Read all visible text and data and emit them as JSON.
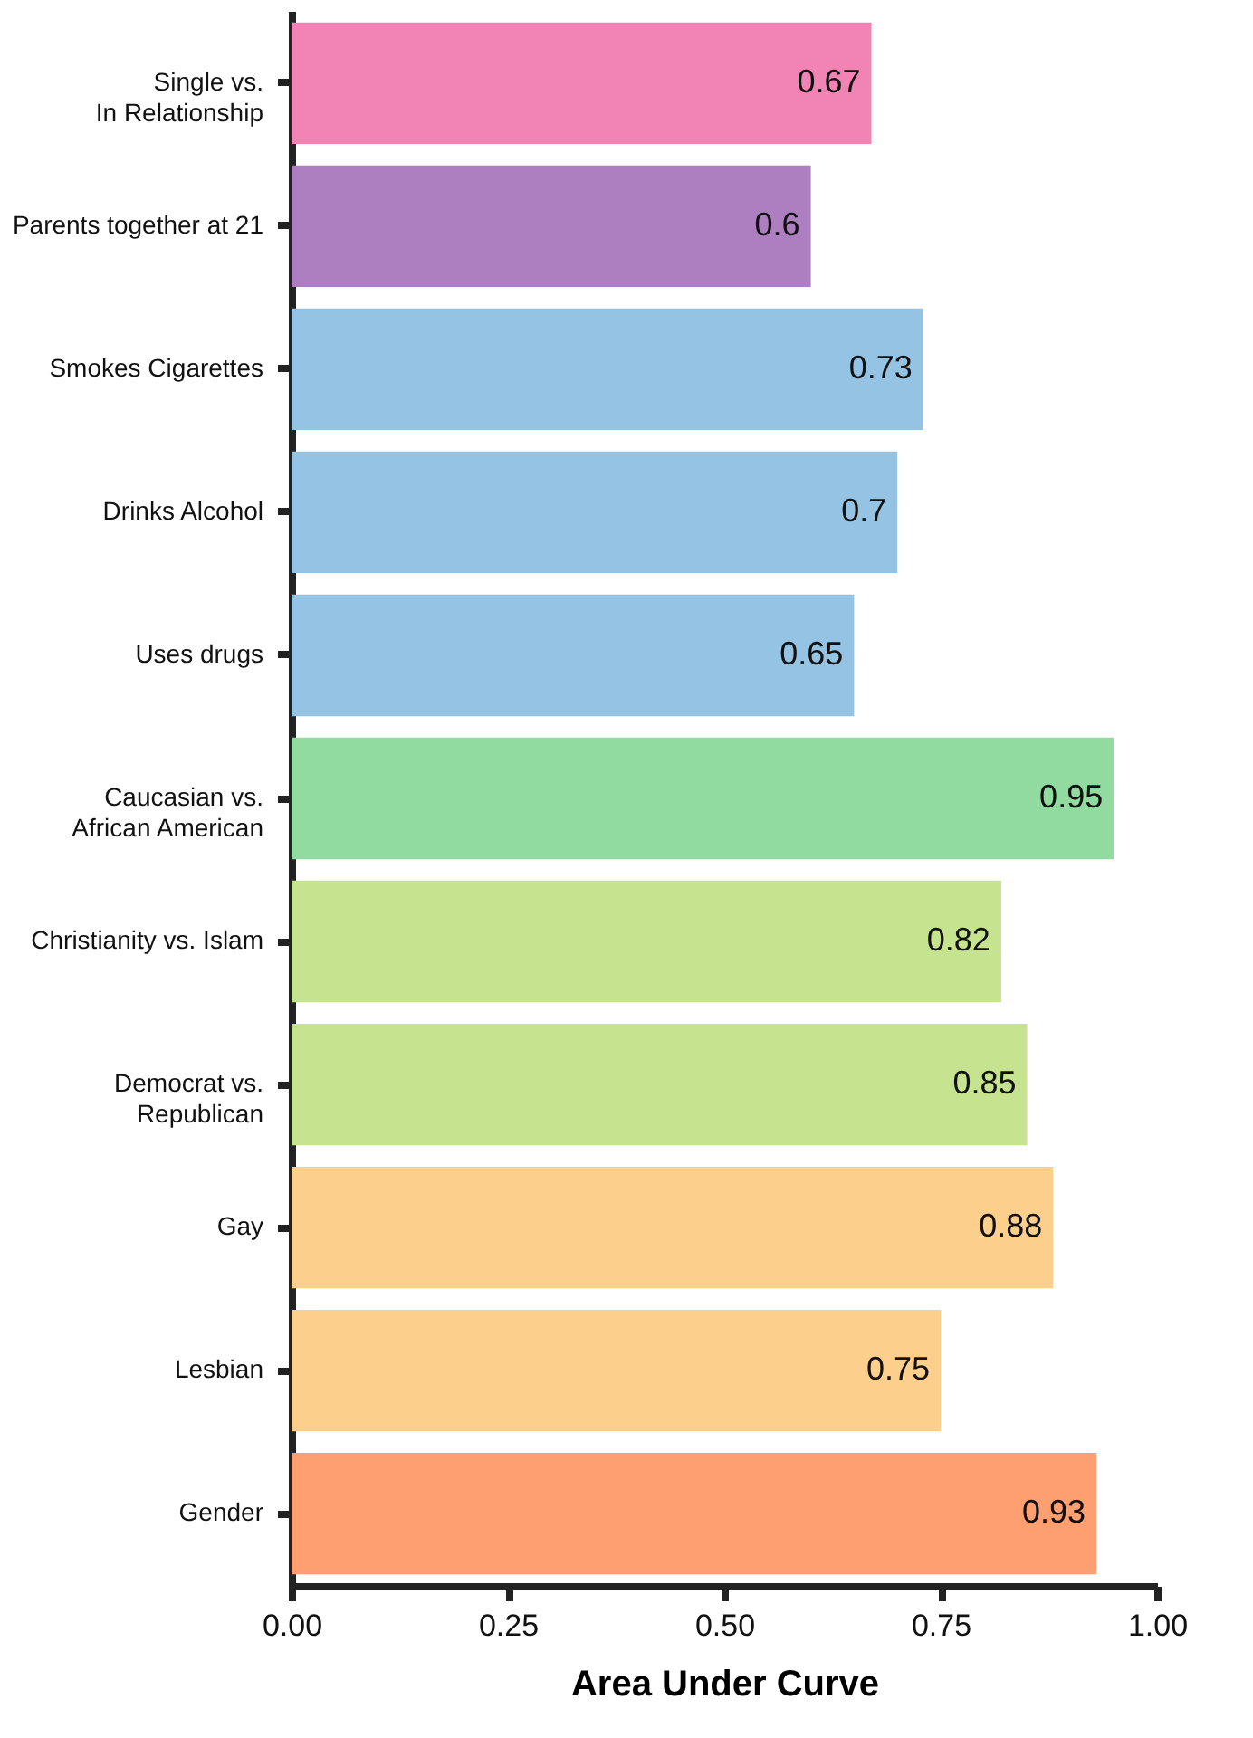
{
  "chart_data": {
    "type": "bar",
    "orientation": "horizontal",
    "xlabel": "Area Under Curve",
    "categories": [
      "Single vs.\nIn Relationship",
      "Parents together at 21",
      "Smokes Cigarettes",
      "Drinks Alcohol",
      "Uses drugs",
      "Caucasian vs.\nAfrican American",
      "Christianity vs. Islam",
      "Democrat vs.\nRepublican",
      "Gay",
      "Lesbian",
      "Gender"
    ],
    "values": [
      0.67,
      0.6,
      0.73,
      0.7,
      0.65,
      0.95,
      0.82,
      0.85,
      0.88,
      0.75,
      0.93
    ],
    "colors": [
      "#f283b5",
      "#ad7fc0",
      "#95c3e4",
      "#95c3e4",
      "#95c3e4",
      "#92dba0",
      "#c6e48f",
      "#c6e48f",
      "#fdcf8c",
      "#fdcf8c",
      "#fe9f72"
    ],
    "xlim": [
      0,
      1
    ],
    "xticks": [
      {
        "value": 0,
        "label": "0.00"
      },
      {
        "value": 0.25,
        "label": "0.25"
      },
      {
        "value": 0.5,
        "label": "0.50"
      },
      {
        "value": 0.75,
        "label": "0.75"
      },
      {
        "value": 1,
        "label": "1.00"
      }
    ],
    "data_labels": true,
    "grid": false
  }
}
